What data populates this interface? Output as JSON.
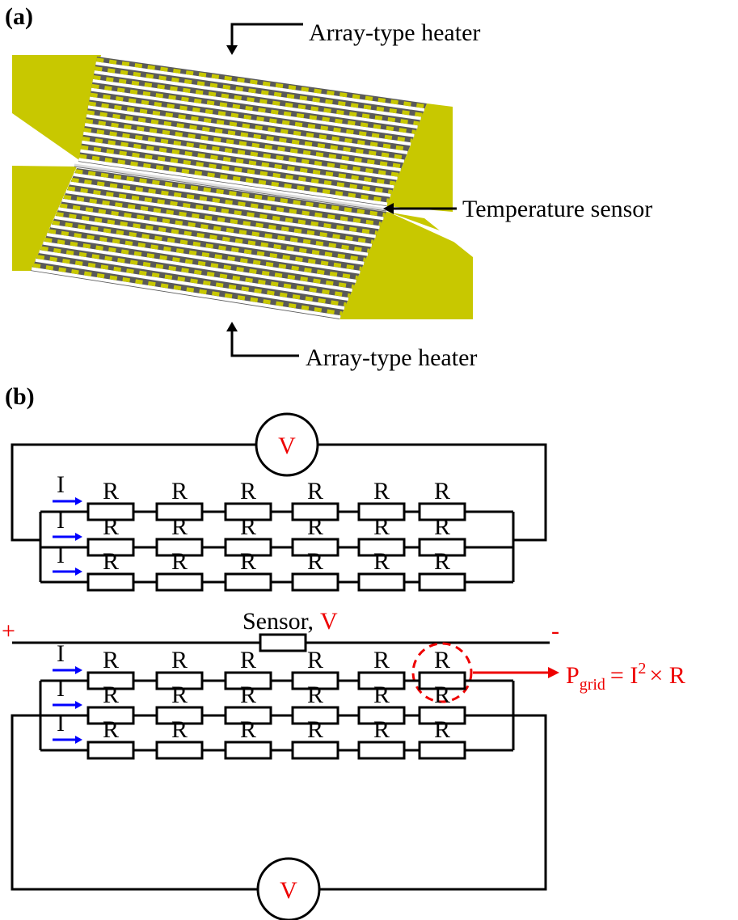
{
  "panel_a": {
    "label": "(a)",
    "top_heater_label": "Array-type heater",
    "sensor_label": "Temperature sensor",
    "bottom_heater_label": "Array-type heater"
  },
  "panel_b": {
    "label": "(b)",
    "top_circuit": {
      "voltmeter": "V",
      "rows": [
        {
          "current": "I",
          "resistors": [
            "R",
            "R",
            "R",
            "R",
            "R",
            "R"
          ]
        },
        {
          "current": "I",
          "resistors": [
            "R",
            "R",
            "R",
            "R",
            "R",
            "R"
          ]
        },
        {
          "current": "I",
          "resistors": [
            "R",
            "R",
            "R",
            "R",
            "R",
            "R"
          ]
        }
      ]
    },
    "sensor": {
      "plus": "+",
      "label": "Sensor,",
      "voltage": "V",
      "minus": "-"
    },
    "bottom_circuit": {
      "voltmeter": "V",
      "rows": [
        {
          "current": "I",
          "resistors": [
            "R",
            "R",
            "R",
            "R",
            "R",
            "R"
          ]
        },
        {
          "current": "I",
          "resistors": [
            "R",
            "R",
            "R",
            "R",
            "R",
            "R"
          ]
        },
        {
          "current": "I",
          "resistors": [
            "R",
            "R",
            "R",
            "R",
            "R",
            "R"
          ]
        }
      ]
    },
    "power": {
      "symbol": "P",
      "subscript": "grid",
      "equals": "= I",
      "superscript": "2",
      "rest": "× R"
    }
  }
}
